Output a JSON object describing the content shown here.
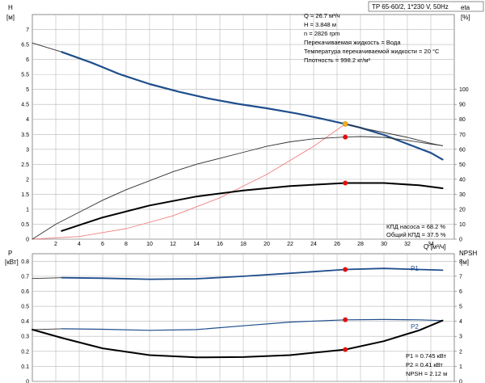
{
  "header": {
    "title": "TP 65-60/2, 1*230 V, 50Hz"
  },
  "top_panel": {
    "y_left_label": "H",
    "y_left_unit": "[м]",
    "y_right_label": "eta",
    "y_right_unit": "[%]",
    "x_label": "Q [м³/ч]",
    "info_lines": [
      "Q = 26.7 м³/ч",
      "H = 3.848 м",
      "n = 2826 rpm",
      "Перекачиваемая жидкость = Вода",
      "Температура перекачиваемой жидкости = 20 °C",
      "Плотность = 998.2 кг/м³"
    ],
    "efficiency_lines": [
      "КПД насоса = 68.2 %",
      "Общий КПД = 37.5 %"
    ]
  },
  "bottom_panel": {
    "y_left_label": "P",
    "y_left_unit": "[кВт]",
    "y_right_label": "NPSH",
    "y_right_unit": "[м]",
    "info_lines": [
      "P1 = 0.745 кВт",
      "P2 = 0.41 кВт",
      "NPSH = 2.12 м"
    ]
  },
  "colors": {
    "curve_blue": "#1f4e8c",
    "system_red": "#f08080",
    "marker_red": "#e01010",
    "marker_orange": "#f0b020",
    "grid": "#b8b8b8",
    "frame": "#707070"
  },
  "chart_data": [
    {
      "type": "line",
      "panel": "top",
      "x_axis": {
        "label": "Q [м³/ч]",
        "min": 0,
        "max": 36,
        "ticks": [
          2,
          4,
          6,
          8,
          10,
          12,
          14,
          16,
          18,
          20,
          22,
          24,
          26,
          28,
          30,
          32,
          34
        ]
      },
      "y_left": {
        "label": "H [м]",
        "min": 0,
        "max": 7.5,
        "ticks": [
          0,
          0.5,
          1,
          1.5,
          2,
          2.5,
          3,
          3.5,
          4,
          4.5,
          5,
          5.5,
          6,
          6.5,
          7
        ]
      },
      "y_right": {
        "label": "eta [%]",
        "min": 0,
        "max": 150,
        "ticks": [
          0,
          10,
          20,
          30,
          40,
          50,
          60,
          70,
          80,
          90,
          100
        ]
      },
      "series": [
        {
          "axis": "left",
          "style": "thin-dark",
          "points": [
            [
              0,
              6.55
            ],
            [
              2.5,
              6.25
            ]
          ]
        },
        {
          "axis": "left",
          "style": "blue-thick",
          "points": [
            [
              2.5,
              6.25
            ],
            [
              5,
              5.9
            ],
            [
              7.5,
              5.5
            ],
            [
              10,
              5.18
            ],
            [
              12.5,
              4.92
            ],
            [
              15,
              4.7
            ],
            [
              17.5,
              4.52
            ],
            [
              20,
              4.37
            ],
            [
              22.5,
              4.2
            ],
            [
              24.5,
              4.04
            ],
            [
              26.7,
              3.848
            ],
            [
              28,
              3.72
            ],
            [
              30,
              3.48
            ],
            [
              32,
              3.18
            ],
            [
              34,
              2.88
            ],
            [
              35,
              2.66
            ]
          ]
        },
        {
          "axis": "left",
          "style": "thin-dark",
          "points": [
            [
              26.7,
              3.848
            ],
            [
              28,
              3.72
            ],
            [
              30,
              3.56
            ],
            [
              32,
              3.4
            ],
            [
              34,
              3.2
            ],
            [
              35,
              3.12
            ]
          ]
        },
        {
          "axis": "left",
          "style": "red-thin",
          "points": [
            [
              0,
              0
            ],
            [
              4,
              0.09
            ],
            [
              8,
              0.35
            ],
            [
              12,
              0.78
            ],
            [
              16,
              1.38
            ],
            [
              20,
              2.16
            ],
            [
              24,
              3.1
            ],
            [
              26.7,
              3.848
            ]
          ]
        },
        {
          "axis": "right",
          "style": "thin-dark",
          "points": [
            [
              0,
              0
            ],
            [
              2,
              10
            ],
            [
              4,
              18
            ],
            [
              6,
              26
            ],
            [
              8,
              33
            ],
            [
              10,
              39
            ],
            [
              12,
              45
            ],
            [
              14,
              50
            ],
            [
              16,
              54
            ],
            [
              18,
              58
            ],
            [
              20,
              62
            ],
            [
              22,
              65
            ],
            [
              24,
              67
            ],
            [
              26.7,
              68.2
            ],
            [
              28,
              68.5
            ],
            [
              30,
              68
            ],
            [
              32,
              66
            ],
            [
              34,
              63.5
            ],
            [
              35,
              62.5
            ]
          ]
        },
        {
          "axis": "right",
          "style": "black-thick",
          "points": [
            [
              2.5,
              5.5
            ],
            [
              6,
              14.5
            ],
            [
              10,
              22.5
            ],
            [
              14,
              28.5
            ],
            [
              18,
              32.5
            ],
            [
              22,
              35.5
            ],
            [
              26.7,
              37.5
            ],
            [
              30,
              37.5
            ],
            [
              33,
              36
            ],
            [
              35,
              34
            ]
          ]
        }
      ],
      "markers": [
        {
          "axis": "left",
          "x": 26.7,
          "y": 3.848,
          "color": "orange"
        },
        {
          "axis": "right",
          "x": 26.7,
          "y": 68.2,
          "color": "red"
        },
        {
          "axis": "right",
          "x": 26.7,
          "y": 37.5,
          "color": "red"
        }
      ]
    },
    {
      "type": "line",
      "panel": "bottom",
      "x_axis": {
        "label": "Q [м³/ч]",
        "min": 0,
        "max": 36
      },
      "y_left": {
        "label": "P [кВт]",
        "min": 0,
        "max": 0.85,
        "ticks": [
          0,
          0.1,
          0.2,
          0.3,
          0.4,
          0.5,
          0.6,
          0.7,
          0.8
        ]
      },
      "y_right": {
        "label": "NPSH [м]",
        "min": 0,
        "max": 8.5,
        "ticks": [
          0,
          1,
          2,
          3,
          4,
          5,
          6,
          7,
          8
        ]
      },
      "series": [
        {
          "axis": "left",
          "style": "thin-dark",
          "points": [
            [
              0,
              0.685
            ],
            [
              2.5,
              0.69
            ]
          ]
        },
        {
          "axis": "left",
          "style": "blue-medium",
          "name": "P1",
          "points": [
            [
              2.5,
              0.69
            ],
            [
              6,
              0.687
            ],
            [
              10,
              0.68
            ],
            [
              14,
              0.683
            ],
            [
              18,
              0.7
            ],
            [
              22,
              0.72
            ],
            [
              26.7,
              0.745
            ],
            [
              30,
              0.752
            ],
            [
              33,
              0.745
            ],
            [
              35,
              0.74
            ]
          ]
        },
        {
          "axis": "left",
          "style": "thin-dark",
          "points": [
            [
              0,
              0.345
            ],
            [
              2.5,
              0.35
            ]
          ]
        },
        {
          "axis": "left",
          "style": "blue-thin",
          "name": "P2",
          "points": [
            [
              2.5,
              0.35
            ],
            [
              6,
              0.347
            ],
            [
              10,
              0.34
            ],
            [
              14,
              0.345
            ],
            [
              18,
              0.37
            ],
            [
              22,
              0.395
            ],
            [
              26.7,
              0.41
            ],
            [
              30,
              0.412
            ],
            [
              33,
              0.41
            ],
            [
              35,
              0.405
            ]
          ]
        },
        {
          "axis": "right",
          "style": "black-thick",
          "points": [
            [
              0,
              3.45
            ],
            [
              2.5,
              2.9
            ],
            [
              6,
              2.2
            ],
            [
              10,
              1.75
            ],
            [
              14,
              1.6
            ],
            [
              18,
              1.62
            ],
            [
              22,
              1.75
            ],
            [
              26.7,
              2.12
            ],
            [
              30,
              2.68
            ],
            [
              33,
              3.4
            ],
            [
              35,
              4.05
            ]
          ]
        }
      ],
      "markers": [
        {
          "axis": "left",
          "x": 26.7,
          "y": 0.745,
          "color": "red"
        },
        {
          "axis": "left",
          "x": 26.7,
          "y": 0.41,
          "color": "red"
        },
        {
          "axis": "right",
          "x": 26.7,
          "y": 2.12,
          "color": "red"
        }
      ],
      "series_labels": [
        "P1",
        "P2"
      ]
    }
  ]
}
